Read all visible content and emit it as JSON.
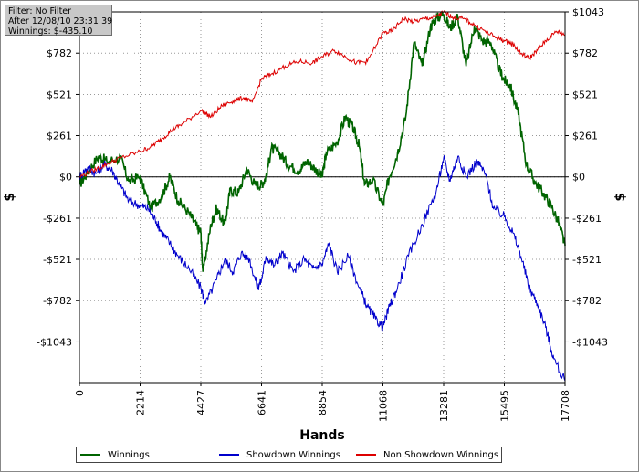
{
  "info_box": {
    "filter": "Filter: No Filter",
    "after": "After 12/08/10 23:31:39",
    "winnings": "Winnings: $-435.10"
  },
  "chart_data": {
    "type": "line",
    "xlabel": "Hands",
    "ylabel_left": "$",
    "ylabel_right": "$",
    "xlim": [
      0,
      17708
    ],
    "ylim": [
      -1300,
      1043
    ],
    "x_ticks": [
      0,
      2214,
      4427,
      6641,
      8854,
      11068,
      13281,
      15495,
      17708
    ],
    "x_tick_labels": [
      "0",
      "2214",
      "4427",
      "6641",
      "8854",
      "11068",
      "13281",
      "15495",
      "17708"
    ],
    "y_ticks": [
      1043,
      782,
      521,
      261,
      0,
      -261,
      -521,
      -782,
      -1043
    ],
    "y_tick_labels": [
      "$1043",
      "$782",
      "$521",
      "$261",
      "$0",
      "-$261",
      "-$521",
      "-$782",
      "-$1043"
    ],
    "grid": true,
    "zero_line": true,
    "legend_position": "bottom",
    "series": [
      {
        "name": "Winnings",
        "color": "#006400",
        "x": [
          0,
          300,
          700,
          1000,
          1500,
          1800,
          2200,
          2600,
          3000,
          3300,
          3600,
          4000,
          4300,
          4427,
          4500,
          4800,
          5000,
          5300,
          5500,
          5800,
          6100,
          6400,
          6641,
          6800,
          7000,
          7300,
          7600,
          8000,
          8300,
          8600,
          8854,
          9000,
          9400,
          9700,
          10000,
          10200,
          10400,
          10700,
          11068,
          11300,
          11600,
          11900,
          12200,
          12500,
          12800,
          13000,
          13281,
          13500,
          13800,
          14100,
          14400,
          14700,
          15000,
          15300,
          15495,
          15700,
          16000,
          16300,
          16600,
          16900,
          17200,
          17500,
          17708
        ],
        "y": [
          -50,
          30,
          130,
          100,
          120,
          -30,
          0,
          -200,
          -120,
          0,
          -150,
          -230,
          -320,
          -350,
          -600,
          -300,
          -200,
          -300,
          -80,
          -100,
          50,
          -50,
          -50,
          0,
          180,
          150,
          80,
          40,
          100,
          50,
          0,
          150,
          220,
          380,
          300,
          200,
          -50,
          -20,
          -180,
          0,
          150,
          380,
          850,
          700,
          950,
          1000,
          1030,
          940,
          1010,
          700,
          950,
          860,
          850,
          680,
          610,
          580,
          400,
          80,
          -30,
          -100,
          -180,
          -300,
          -435
        ]
      },
      {
        "name": "Showdown Winnings",
        "color": "#0000cc",
        "x": [
          0,
          300,
          600,
          900,
          1200,
          1500,
          1800,
          2214,
          2500,
          2800,
          3000,
          3300,
          3600,
          4000,
          4427,
          4600,
          5000,
          5300,
          5600,
          5900,
          6200,
          6500,
          6641,
          6800,
          7100,
          7400,
          7800,
          8200,
          8500,
          8854,
          9100,
          9400,
          9800,
          10200,
          10500,
          10800,
          11068,
          11300,
          11600,
          12000,
          12500,
          13000,
          13281,
          13500,
          13800,
          14100,
          14500,
          14800,
          15100,
          15495,
          15800,
          16100,
          16400,
          16700,
          17000,
          17300,
          17708
        ],
        "y": [
          0,
          60,
          20,
          80,
          40,
          -60,
          -150,
          -180,
          -200,
          -280,
          -350,
          -420,
          -500,
          -580,
          -700,
          -800,
          -650,
          -520,
          -600,
          -480,
          -520,
          -700,
          -650,
          -500,
          -560,
          -480,
          -600,
          -520,
          -580,
          -550,
          -420,
          -600,
          -500,
          -700,
          -820,
          -900,
          -950,
          -820,
          -700,
          -500,
          -300,
          -100,
          120,
          -20,
          130,
          0,
          100,
          20,
          -200,
          -250,
          -350,
          -500,
          -700,
          -800,
          -950,
          -1150,
          -1290
        ]
      },
      {
        "name": "Non Showdown Winnings",
        "color": "#dd0000",
        "x": [
          0,
          500,
          1000,
          1500,
          2214,
          2600,
          3000,
          3400,
          3800,
          4427,
          4800,
          5200,
          5600,
          6000,
          6300,
          6641,
          7000,
          7500,
          8000,
          8500,
          8854,
          9300,
          9700,
          10100,
          10500,
          11068,
          11400,
          11800,
          12200,
          12600,
          13000,
          13281,
          13600,
          14000,
          14400,
          14800,
          15200,
          15495,
          15800,
          16100,
          16400,
          16700,
          17000,
          17400,
          17708
        ],
        "y": [
          0,
          40,
          80,
          120,
          160,
          190,
          240,
          300,
          340,
          420,
          380,
          450,
          480,
          500,
          470,
          620,
          650,
          700,
          730,
          720,
          760,
          800,
          760,
          720,
          730,
          910,
          920,
          1000,
          980,
          1000,
          1010,
          1043,
          1010,
          1000,
          960,
          920,
          880,
          860,
          840,
          780,
          750,
          800,
          860,
          920,
          900
        ]
      }
    ]
  }
}
